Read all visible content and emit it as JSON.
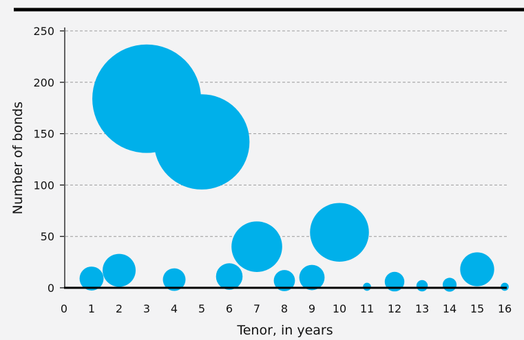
{
  "chart_data": {
    "type": "scatter",
    "xlabel": "Tenor, in years",
    "ylabel": "Number of bonds",
    "xlim": [
      0,
      16
    ],
    "ylim": [
      0,
      250
    ],
    "xticks": [
      0,
      1,
      2,
      3,
      4,
      5,
      6,
      7,
      8,
      9,
      10,
      11,
      12,
      13,
      14,
      15,
      16
    ],
    "yticks": [
      0,
      50,
      100,
      150,
      200,
      250
    ],
    "grid": true,
    "legend": "none",
    "bubble_size_encodes": "y",
    "colors": {
      "marker": "#00b0ea",
      "axis": "#000000",
      "grid": "#9a9a9a",
      "background": "#f3f3f4"
    },
    "points": [
      {
        "x": 1,
        "y": 9
      },
      {
        "x": 2,
        "y": 17
      },
      {
        "x": 3,
        "y": 184
      },
      {
        "x": 4,
        "y": 8
      },
      {
        "x": 5,
        "y": 142
      },
      {
        "x": 6,
        "y": 11
      },
      {
        "x": 7,
        "y": 40
      },
      {
        "x": 8,
        "y": 7
      },
      {
        "x": 9,
        "y": 10
      },
      {
        "x": 10,
        "y": 54
      },
      {
        "x": 11,
        "y": 1
      },
      {
        "x": 12,
        "y": 6
      },
      {
        "x": 13,
        "y": 2
      },
      {
        "x": 14,
        "y": 3
      },
      {
        "x": 15,
        "y": 18
      },
      {
        "x": 16,
        "y": 1
      }
    ]
  }
}
